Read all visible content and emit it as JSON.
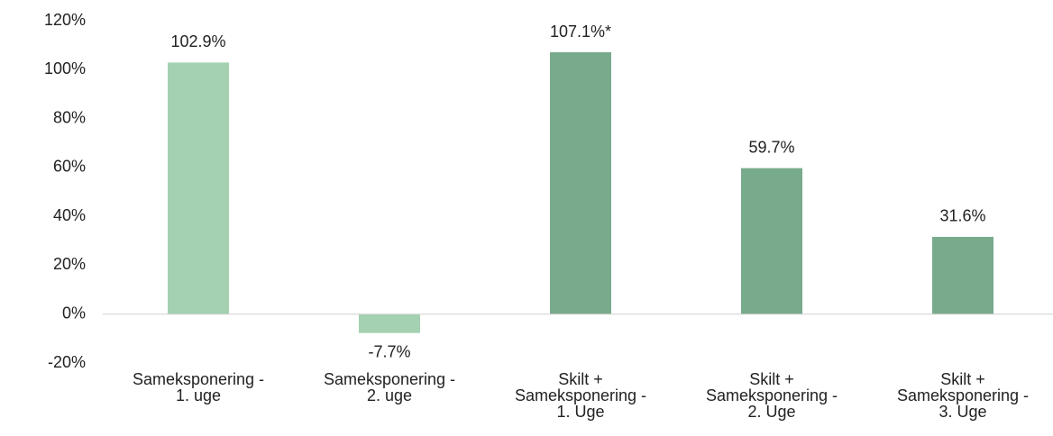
{
  "chart_data": {
    "type": "bar",
    "categories": [
      "Sameksponering - 1. uge",
      "Sameksponering - 2. uge",
      "Skilt + Sameksponering - 1. Uge",
      "Skilt + Sameksponering - 2. Uge",
      "Skilt + Sameksponering - 3. Uge"
    ],
    "values": [
      102.9,
      -7.7,
      107.1,
      59.7,
      31.6
    ],
    "value_labels": [
      "102.9%",
      "-7.7%",
      "107.1%*",
      "59.7%",
      "31.6%"
    ],
    "colors": [
      "#a3d1b1",
      "#a3d1b1",
      "#78aa8c",
      "#78aa8c",
      "#78aa8c"
    ],
    "ylim": [
      -20,
      120
    ],
    "yticks": [
      {
        "value": -20,
        "label": "-20%"
      },
      {
        "value": 0,
        "label": "0%"
      },
      {
        "value": 20,
        "label": "20%"
      },
      {
        "value": 40,
        "label": "40%"
      },
      {
        "value": 60,
        "label": "60%"
      },
      {
        "value": 80,
        "label": "80%"
      },
      {
        "value": 100,
        "label": "100%"
      },
      {
        "value": 120,
        "label": "120%"
      }
    ],
    "grid": false
  }
}
